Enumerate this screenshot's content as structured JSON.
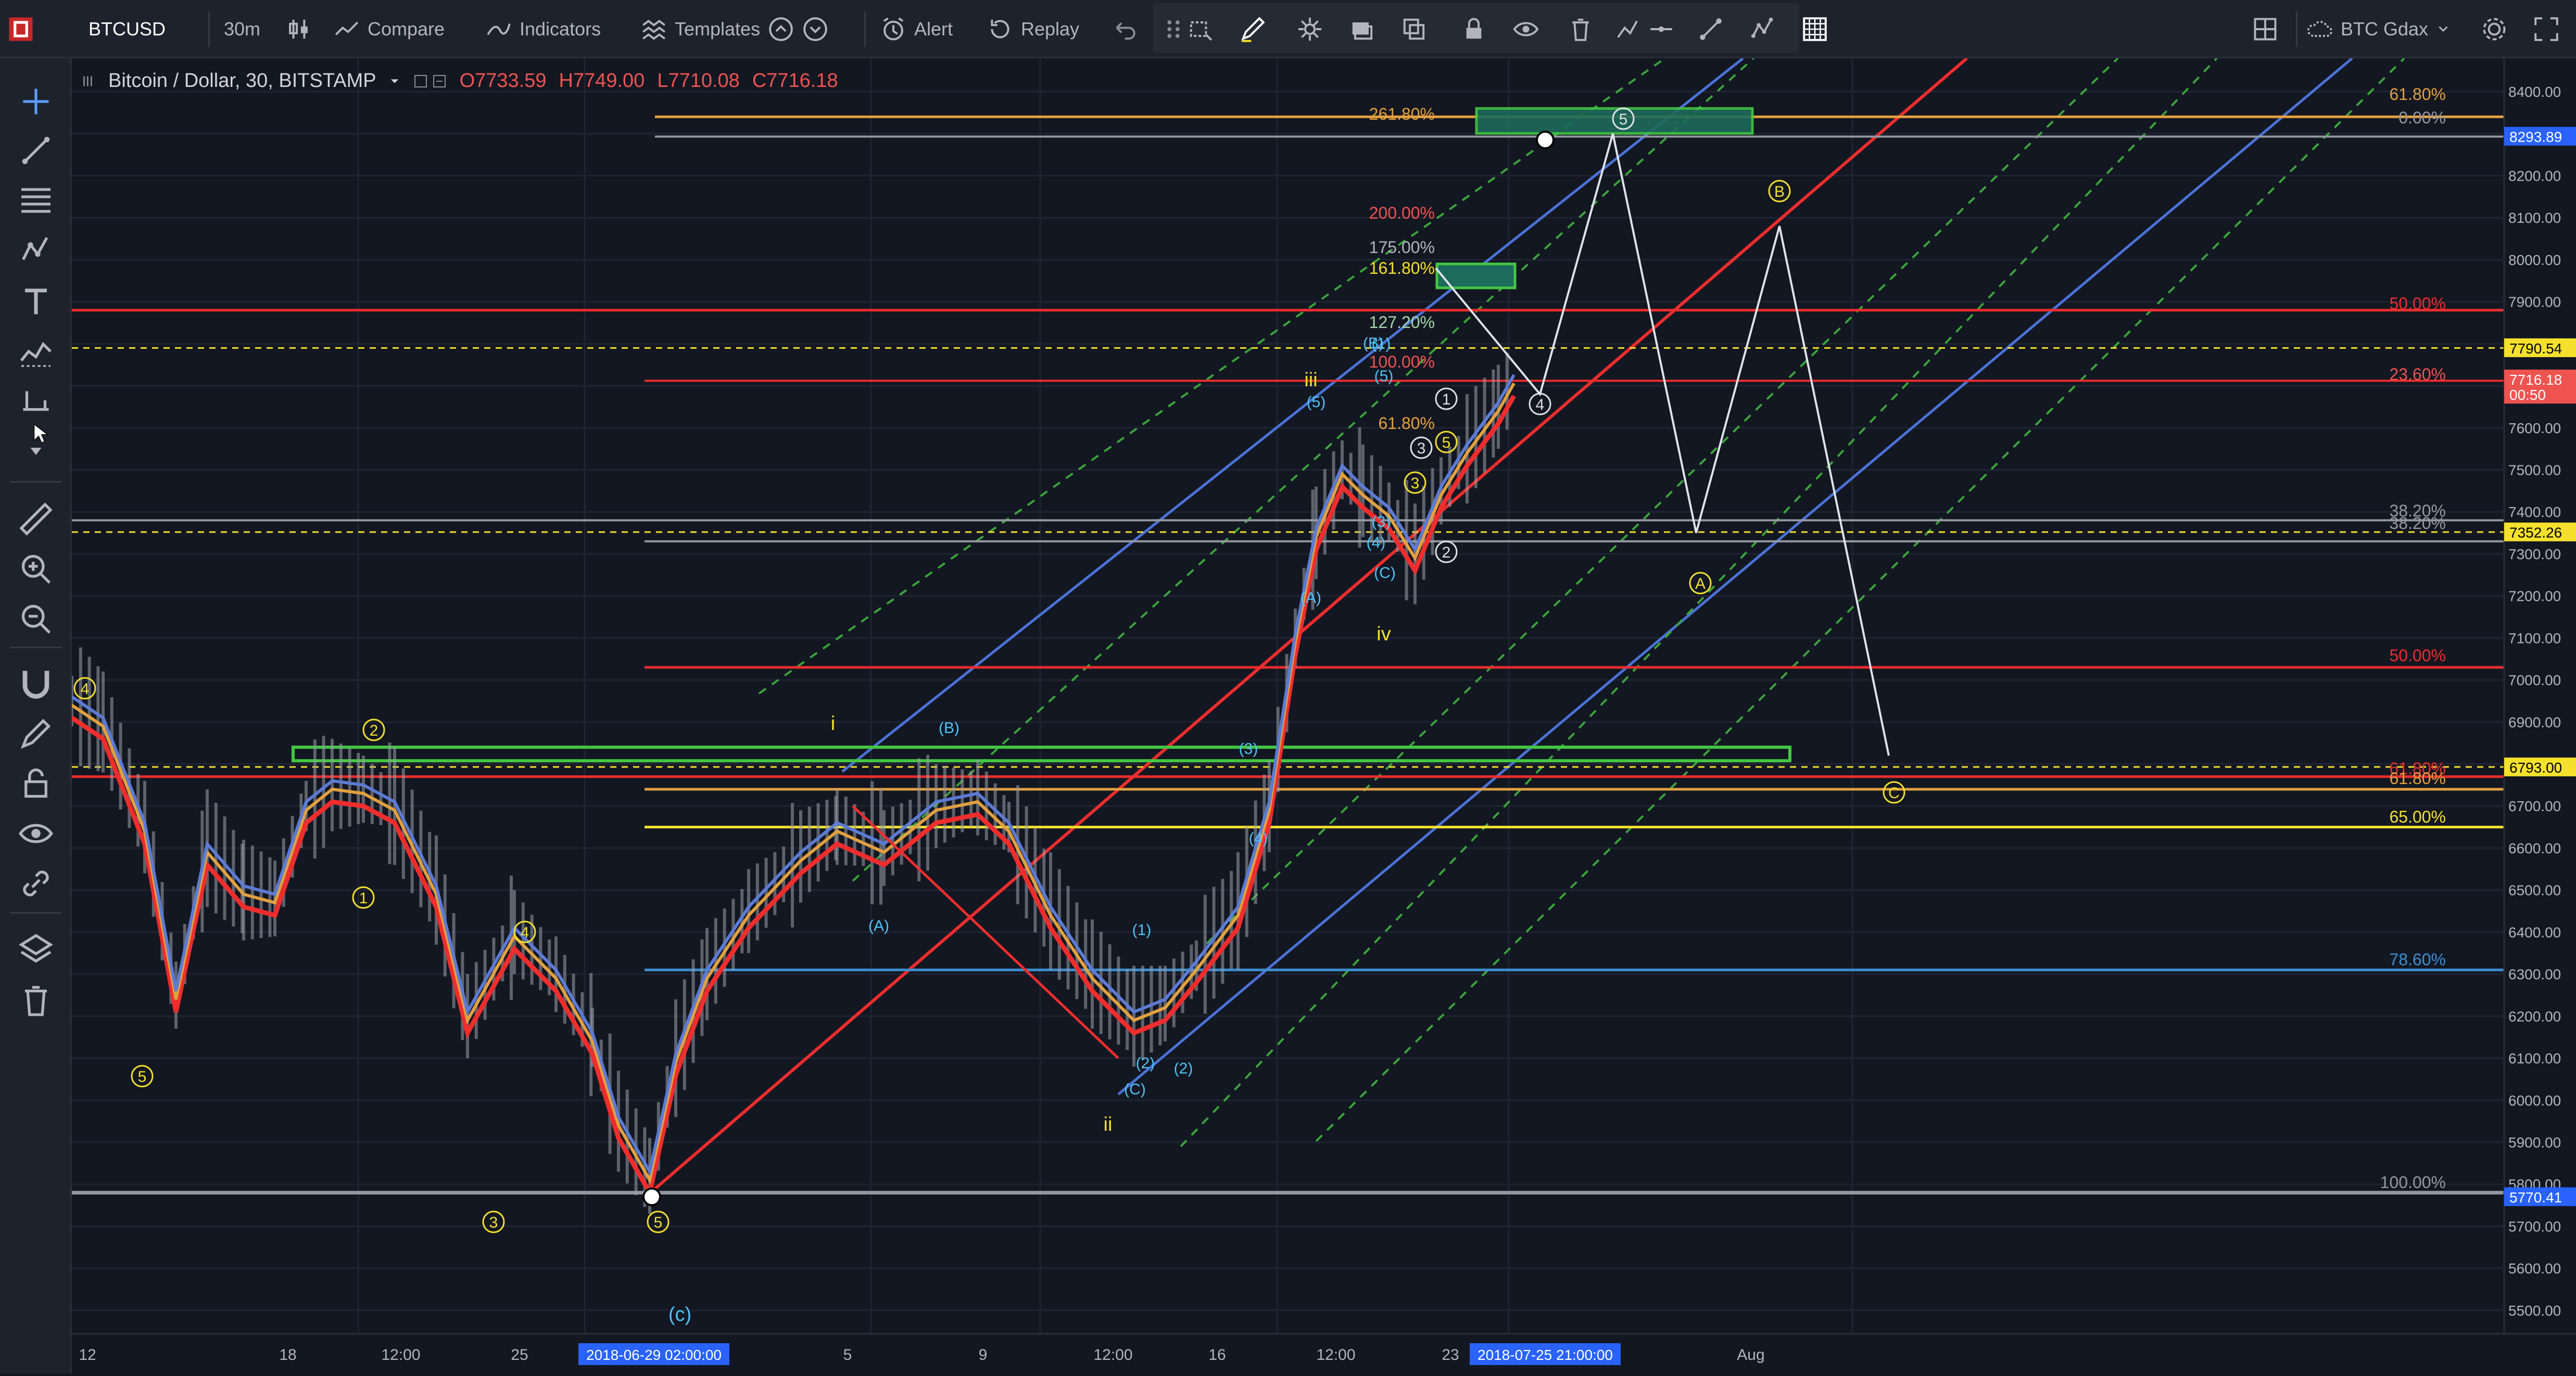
{
  "topbar": {
    "symbol": "BTCUSD",
    "interval": "30m",
    "compare": "Compare",
    "indicators": "Indicators",
    "templates": "Templates",
    "alert": "Alert",
    "replay": "Replay",
    "layout_name": "BTC Gdax"
  },
  "legend": {
    "title": "Bitcoin / Dollar, 30, BITSTAMP",
    "open": "O7733.59",
    "high": "H7749.00",
    "low": "L7710.08",
    "close": "C7716.18"
  },
  "price_axis": {
    "ticks": [
      "8400.00",
      "8300.00",
      "8200.00",
      "8100.00",
      "8000.00",
      "7900.00",
      "7800.00",
      "7700.00",
      "7600.00",
      "7500.00",
      "7400.00",
      "7300.00",
      "7200.00",
      "7100.00",
      "7000.00",
      "6900.00",
      "6800.00",
      "6700.00",
      "6600.00",
      "6500.00",
      "6400.00",
      "6300.00",
      "6200.00",
      "6100.00",
      "6000.00",
      "5900.00",
      "5800.00",
      "5700.00",
      "5600.00",
      "5500.00"
    ],
    "badges": [
      {
        "text": "8293.89",
        "color": "#2962ff"
      },
      {
        "text": "7790.54",
        "color": "#f5e12d"
      },
      {
        "text": "7716.18",
        "color": "#ef5350"
      },
      {
        "text": "00:50",
        "color": "#ef5350"
      },
      {
        "text": "7352.26",
        "color": "#f5e12d"
      },
      {
        "text": "6793.00",
        "color": "#f5e12d"
      },
      {
        "text": "5770.41",
        "color": "#2962ff"
      }
    ]
  },
  "time_axis": {
    "ticks": [
      "12",
      "18",
      "12:00",
      "25",
      "5",
      "9",
      "12:00",
      "16",
      "12:00",
      "23",
      "Aug"
    ],
    "cursor_labels": [
      "2018-06-29 02:00:00",
      "2018-07-25 21:00:00"
    ]
  },
  "fib_right": [
    "61.80%",
    "0.00%",
    "50.00%",
    "23.60%",
    "38.20%",
    "38.20%",
    "50.00%",
    "61.80%",
    "61.80%",
    "65.00%",
    "78.60%",
    "100.00%"
  ],
  "fib_ext": [
    "261.80%",
    "200.00%",
    "175.00%",
    "161.80%",
    "127.20%",
    "100.00%",
    "61.80%"
  ],
  "waves": {
    "yellow": [
      "4",
      "2",
      "1",
      "5",
      "4",
      "3",
      "5",
      "i",
      "ii",
      "iii",
      "iv",
      "3",
      "5",
      "B",
      "C"
    ],
    "cyan": [
      "(B)",
      "(A)",
      "(C)",
      "(2)",
      "(1)",
      "(3)",
      "(4)",
      "(5)",
      "(A)",
      "(B)",
      "(C)",
      "(1)",
      "(2)",
      "(3)",
      "(4)",
      "(5)"
    ],
    "white": [
      "1",
      "2",
      "3",
      "4",
      "5",
      "(c)"
    ],
    "pivot_a": "A"
  },
  "colors": {
    "bg": "#131722",
    "up_line": "#ef2d2d",
    "ma_blue": "#5b7bd5",
    "ma_orange": "#e2a03f",
    "channel": "#4a73d8",
    "green_box": "#43c743"
  }
}
